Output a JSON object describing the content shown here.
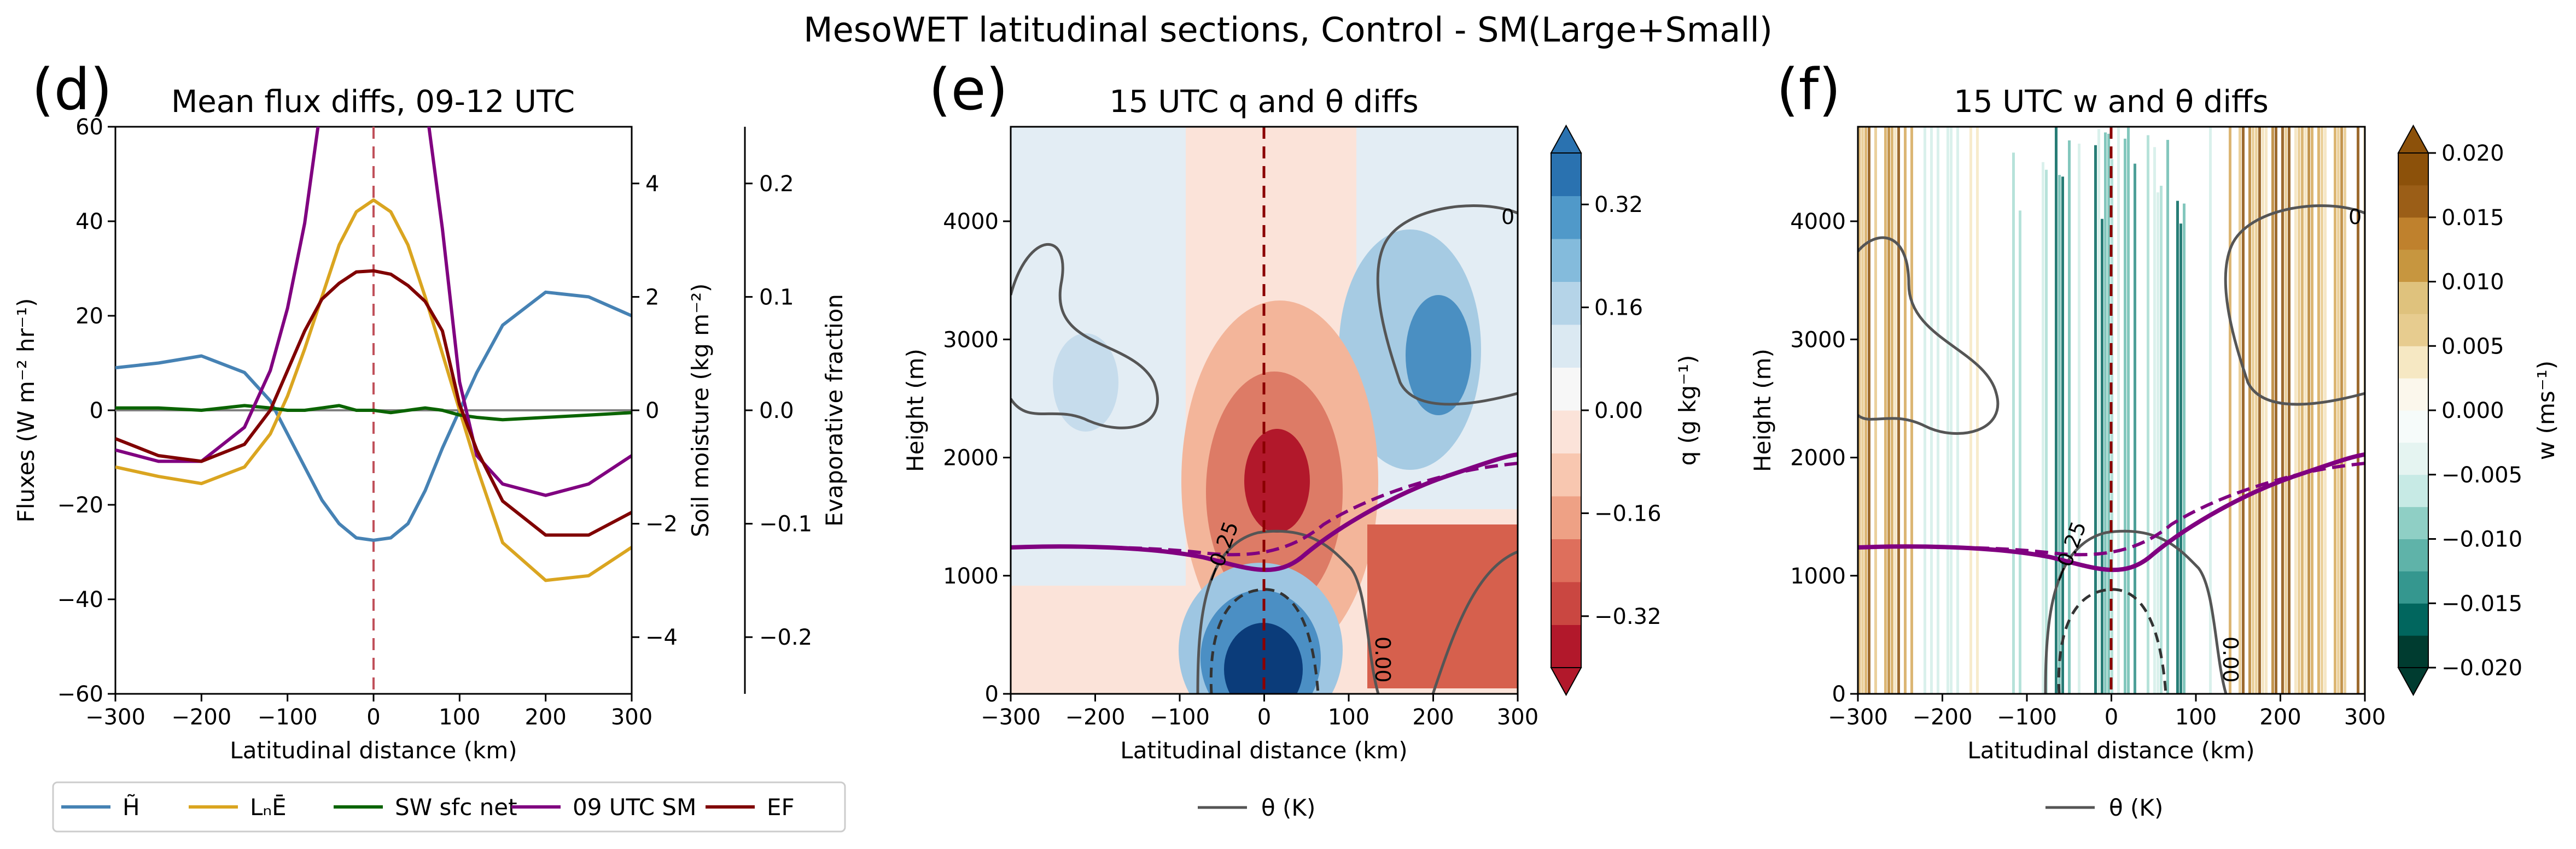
{
  "figure": {
    "suptitle": "MesoWET latitudinal sections, Control - SM(Large+Small)"
  },
  "chart_data": [
    {
      "id": "d",
      "type": "line",
      "panel_letter": "(d)",
      "title": "Mean flux diffs, 09-12 UTC",
      "xlabel": "Latitudinal distance (km)",
      "ylabel": "Fluxes (W m⁻² hr⁻¹)",
      "xlim": [
        -300,
        300
      ],
      "ylim": [
        -60,
        60
      ],
      "x_ticks": [
        -300,
        -200,
        -100,
        0,
        100,
        200,
        300
      ],
      "x_tick_labels": [
        "−300",
        "−200",
        "−100",
        "0",
        "100",
        "200",
        "300"
      ],
      "y_ticks": [
        -60,
        -40,
        -20,
        0,
        20,
        40,
        60
      ],
      "y_tick_labels": [
        "−60",
        "−40",
        "−20",
        "0",
        "20",
        "40",
        "60"
      ],
      "secondary_axis_sm": {
        "label": "Soil moisture (kg m⁻²)",
        "range": [
          -5,
          5
        ],
        "ticks": [
          -4,
          -2,
          0,
          2,
          4
        ],
        "tick_labels": [
          "−4",
          "−2",
          "0",
          "2",
          "4"
        ]
      },
      "secondary_axis_ef": {
        "label": "Evaporative fraction",
        "range": [
          -0.25,
          0.25
        ],
        "ticks": [
          -0.2,
          -0.1,
          0.0,
          0.1,
          0.2
        ],
        "tick_labels": [
          "−0.2",
          "−0.1",
          "0.0",
          "0.1",
          "0.2"
        ]
      },
      "x": [
        -300,
        -250,
        -200,
        -150,
        -120,
        -100,
        -80,
        -60,
        -40,
        -20,
        0,
        20,
        40,
        60,
        80,
        100,
        120,
        150,
        200,
        250,
        300
      ],
      "series": [
        {
          "name": "H",
          "legend_label": "H̃",
          "color": "#4682b4",
          "axis": "flux",
          "values": [
            9,
            10,
            11.5,
            8,
            2,
            -5,
            -12,
            -19,
            -24,
            -27,
            -27.5,
            -27,
            -24,
            -17,
            -8,
            0,
            8,
            18,
            25,
            24,
            20
          ]
        },
        {
          "name": "LcE",
          "legend_label": "LₙĒ",
          "color": "#daa520",
          "axis": "flux",
          "values": [
            -12,
            -14,
            -15.5,
            -12,
            -5,
            3,
            13,
            24,
            35,
            42,
            44.5,
            42,
            35,
            24,
            12,
            0,
            -12,
            -28,
            -36,
            -35,
            -29
          ]
        },
        {
          "name": "SW_sfc_net",
          "legend_label": "SW sfc net",
          "color": "#0a6400",
          "axis": "flux",
          "values": [
            0.5,
            0.5,
            0,
            1,
            0.5,
            0,
            0,
            0.5,
            1,
            0,
            0,
            -0.5,
            0,
            0.5,
            0,
            -1,
            -1.5,
            -2,
            -1.5,
            -1,
            -0.5
          ]
        },
        {
          "name": "09 UTC SM",
          "legend_label": "09 UTC SM",
          "color": "#800080",
          "axis": "sm",
          "values": [
            -0.7,
            -0.9,
            -0.9,
            -0.3,
            0.7,
            1.8,
            3.3,
            5.5,
            8,
            9.5,
            10,
            9.5,
            8,
            5.5,
            3.2,
            0.5,
            -0.8,
            -1.3,
            -1.5,
            -1.3,
            -0.8
          ]
        },
        {
          "name": "EF",
          "legend_label": "EF",
          "color": "#800000",
          "axis": "ef",
          "values": [
            -0.025,
            -0.04,
            -0.045,
            -0.03,
            0,
            0.035,
            0.07,
            0.098,
            0.112,
            0.122,
            0.123,
            0.12,
            0.11,
            0.096,
            0.07,
            0.005,
            -0.035,
            -0.08,
            -0.11,
            -0.11,
            -0.09
          ]
        }
      ],
      "vline_x": 0,
      "legend_location": "bottom-left"
    },
    {
      "id": "e",
      "type": "heatmap",
      "panel_letter": "(e)",
      "title": "15 UTC q and θ diffs",
      "xlabel": "Latitudinal distance (km)",
      "ylabel": "Height (m)",
      "xlim": [
        -300,
        300
      ],
      "ylim": [
        0,
        4800
      ],
      "x_ticks": [
        -300,
        -200,
        -100,
        0,
        100,
        200,
        300
      ],
      "x_tick_labels": [
        "−300",
        "−200",
        "−100",
        "0",
        "100",
        "200",
        "300"
      ],
      "y_ticks": [
        0,
        1000,
        2000,
        3000,
        4000
      ],
      "y_tick_labels": [
        "0",
        "1000",
        "2000",
        "3000",
        "4000"
      ],
      "colorbar": {
        "label": "q (g kg⁻¹)",
        "range": [
          -0.4,
          0.4
        ],
        "ticks": [
          -0.32,
          -0.16,
          0.0,
          0.16,
          0.32
        ],
        "tick_labels": [
          "−0.32",
          "−0.16",
          "0.00",
          "0.16",
          "0.32"
        ]
      },
      "contour_labels": [
        "−0.25",
        "0.00",
        "0"
      ],
      "legend_entry": "θ (K)",
      "vline_x": 0
    },
    {
      "id": "f",
      "type": "heatmap",
      "panel_letter": "(f)",
      "title": "15 UTC w and θ diffs",
      "xlabel": "Latitudinal distance (km)",
      "ylabel": "Height (m)",
      "xlim": [
        -300,
        300
      ],
      "ylim": [
        0,
        4800
      ],
      "x_ticks": [
        -300,
        -200,
        -100,
        0,
        100,
        200,
        300
      ],
      "x_tick_labels": [
        "−300",
        "−200",
        "−100",
        "0",
        "100",
        "200",
        "300"
      ],
      "y_ticks": [
        0,
        1000,
        2000,
        3000,
        4000
      ],
      "y_tick_labels": [
        "0",
        "1000",
        "2000",
        "3000",
        "4000"
      ],
      "colorbar": {
        "label": "w (ms⁻¹)",
        "range": [
          -0.02,
          0.02
        ],
        "ticks": [
          -0.02,
          -0.015,
          -0.01,
          -0.005,
          0.0,
          0.005,
          0.01,
          0.015,
          0.02
        ],
        "tick_labels": [
          "−0.020",
          "−0.015",
          "−0.010",
          "−0.005",
          "0.000",
          "0.005",
          "0.010",
          "0.015",
          "0.020"
        ]
      },
      "contour_labels": [
        "−0.25",
        "0.00",
        "0"
      ],
      "legend_entry": "θ (K)",
      "vline_x": 0
    }
  ],
  "colors": {
    "purple": "#800080",
    "vline": "#8b0000",
    "contour": "#555555"
  }
}
